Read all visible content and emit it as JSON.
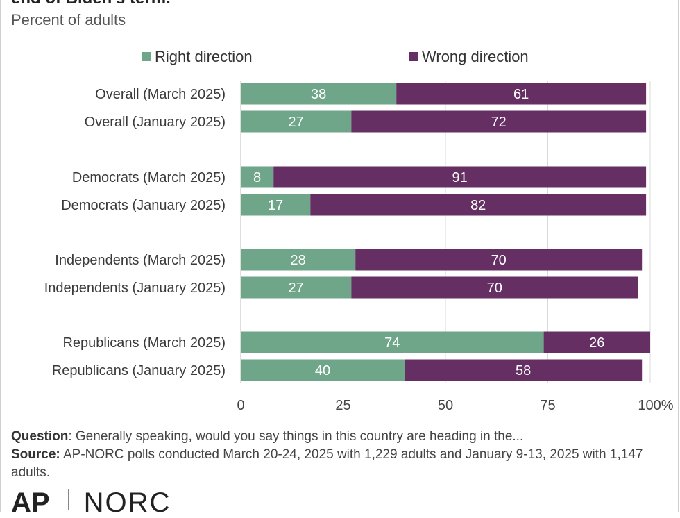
{
  "title": "end of Biden's term.",
  "subtitle": "Percent of adults",
  "chart_data": {
    "type": "bar",
    "orientation": "horizontal",
    "stacked": true,
    "categories": [
      "Overall (March 2025)",
      "Overall (January 2025)",
      "Democrats (March 2025)",
      "Democrats (January 2025)",
      "Independents (March 2025)",
      "Independents (January 2025)",
      "Republicans (March 2025)",
      "Republicans (January 2025)"
    ],
    "series": [
      {
        "name": "Right direction",
        "color": "#6fa588",
        "values": [
          38,
          27,
          8,
          17,
          28,
          27,
          74,
          40
        ]
      },
      {
        "name": "Wrong direction",
        "color": "#652f63",
        "values": [
          61,
          72,
          91,
          82,
          70,
          70,
          26,
          58
        ]
      }
    ],
    "xlim": [
      0,
      100
    ],
    "xticks": [
      "0",
      "25",
      "50",
      "75",
      "100%"
    ],
    "grid": true,
    "legend": "top"
  },
  "footer": {
    "question_label": "Question",
    "question_text": ": Generally speaking, would you say things in this country are heading in the...",
    "source_label": "Source:",
    "source_text": " AP-NORC polls conducted March 20-24, 2025 with 1,229 adults and January 9-13, 2025 with 1,147 adults."
  },
  "logos": {
    "ap": "AP",
    "norc": "NORC"
  }
}
